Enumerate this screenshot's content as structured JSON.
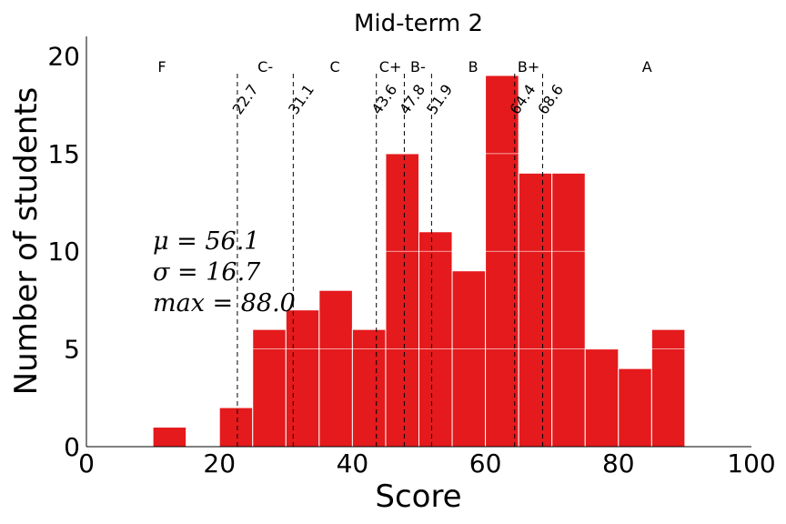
{
  "chart_data": {
    "type": "bar",
    "title": "Mid-term 2",
    "xlabel": "Score",
    "ylabel": "Number of students",
    "xlim": [
      0,
      100
    ],
    "ylim": [
      0,
      21
    ],
    "x_ticks": [
      0,
      20,
      40,
      60,
      80,
      100
    ],
    "y_ticks": [
      0,
      5,
      10,
      15,
      20
    ],
    "bar_color": "#e41a1c",
    "bin_width": 5,
    "bins": [
      {
        "start": 10,
        "count": 1
      },
      {
        "start": 20,
        "count": 2
      },
      {
        "start": 25,
        "count": 6
      },
      {
        "start": 30,
        "count": 7
      },
      {
        "start": 35,
        "count": 8
      },
      {
        "start": 40,
        "count": 6
      },
      {
        "start": 45,
        "count": 15
      },
      {
        "start": 50,
        "count": 11
      },
      {
        "start": 55,
        "count": 9
      },
      {
        "start": 60,
        "count": 19
      },
      {
        "start": 65,
        "count": 14
      },
      {
        "start": 70,
        "count": 14
      },
      {
        "start": 75,
        "count": 5
      },
      {
        "start": 80,
        "count": 4
      },
      {
        "start": 85,
        "count": 6
      }
    ],
    "cutoffs": [
      {
        "value": 22.7,
        "label": "22.7"
      },
      {
        "value": 31.1,
        "label": "31.1"
      },
      {
        "value": 43.6,
        "label": "43.6"
      },
      {
        "value": 47.8,
        "label": "47.8"
      },
      {
        "value": 51.9,
        "label": "51.9"
      },
      {
        "value": 64.4,
        "label": "64.4"
      },
      {
        "value": 68.6,
        "label": "68.6"
      }
    ],
    "grades": [
      {
        "label": "F",
        "x": 11.35
      },
      {
        "label": "C-",
        "x": 26.9
      },
      {
        "label": "C",
        "x": 37.35
      },
      {
        "label": "C+",
        "x": 45.7
      },
      {
        "label": "B-",
        "x": 49.85
      },
      {
        "label": "B",
        "x": 58.15
      },
      {
        "label": "B+",
        "x": 66.5
      },
      {
        "label": "A",
        "x": 84.3
      }
    ],
    "stats": {
      "mean": "μ = 56.1",
      "std": "σ = 16.7",
      "max": "max = 88.0"
    }
  }
}
